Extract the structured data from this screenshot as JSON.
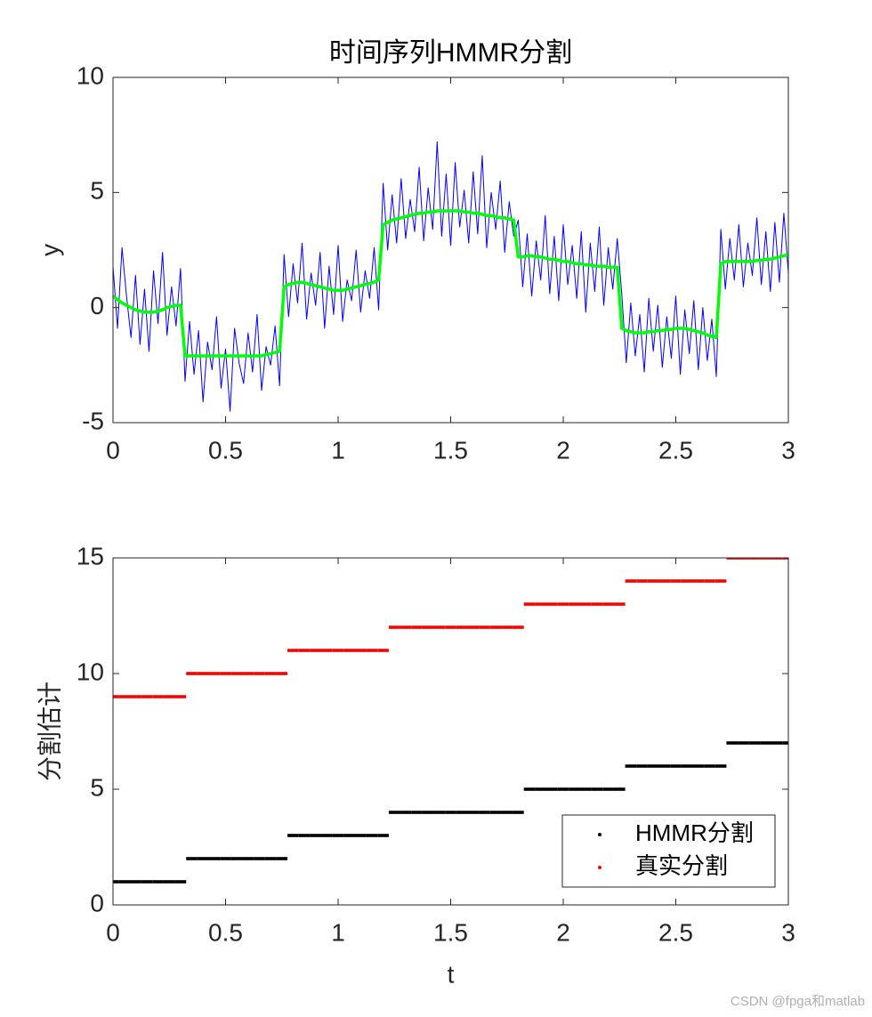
{
  "chart_data": [
    {
      "type": "line",
      "title": "时间序列HMMR分割",
      "ylabel": "y",
      "xlim": [
        0,
        3
      ],
      "ylim": [
        -5,
        10
      ],
      "xticks": [
        0,
        0.5,
        1,
        1.5,
        2,
        2.5,
        3
      ],
      "yticks": [
        -5,
        0,
        5,
        10
      ],
      "x": [
        0,
        0.02,
        0.04,
        0.06,
        0.08,
        0.1,
        0.12,
        0.14,
        0.16,
        0.18,
        0.2,
        0.22,
        0.24,
        0.26,
        0.28,
        0.3,
        0.32,
        0.34,
        0.36,
        0.38,
        0.4,
        0.42,
        0.44,
        0.46,
        0.48,
        0.5,
        0.52,
        0.54,
        0.56,
        0.58,
        0.6,
        0.62,
        0.64,
        0.66,
        0.68,
        0.7,
        0.72,
        0.74,
        0.76,
        0.78,
        0.8,
        0.82,
        0.84,
        0.86,
        0.88,
        0.9,
        0.92,
        0.94,
        0.96,
        0.98,
        1,
        1.02,
        1.04,
        1.06,
        1.08,
        1.1,
        1.12,
        1.14,
        1.16,
        1.18,
        1.2,
        1.22,
        1.24,
        1.26,
        1.28,
        1.3,
        1.32,
        1.34,
        1.36,
        1.38,
        1.4,
        1.42,
        1.44,
        1.46,
        1.48,
        1.5,
        1.52,
        1.54,
        1.56,
        1.58,
        1.6,
        1.62,
        1.64,
        1.66,
        1.68,
        1.7,
        1.72,
        1.74,
        1.76,
        1.78,
        1.8,
        1.82,
        1.84,
        1.86,
        1.88,
        1.9,
        1.92,
        1.94,
        1.96,
        1.98,
        2,
        2.02,
        2.04,
        2.06,
        2.08,
        2.1,
        2.12,
        2.14,
        2.16,
        2.18,
        2.2,
        2.22,
        2.24,
        2.26,
        2.28,
        2.3,
        2.32,
        2.34,
        2.36,
        2.38,
        2.4,
        2.42,
        2.44,
        2.46,
        2.48,
        2.5,
        2.52,
        2.54,
        2.56,
        2.58,
        2.6,
        2.62,
        2.64,
        2.66,
        2.68,
        2.7,
        2.72,
        2.74,
        2.76,
        2.78,
        2.8,
        2.82,
        2.84,
        2.86,
        2.88,
        2.9,
        2.92,
        2.94,
        2.96,
        2.98,
        3
      ],
      "series": [
        {
          "color": "#0000ff",
          "values": [
            1.8,
            -0.9,
            2.6,
            0.5,
            -1.3,
            1.4,
            -1.6,
            0.8,
            -1.9,
            1.6,
            -0.7,
            2.4,
            -1.2,
            0.9,
            -0.8,
            1.7,
            -3.2,
            -0.6,
            -2.9,
            -1.0,
            -4.1,
            -1.5,
            -2.7,
            -0.4,
            -3.5,
            -1.8,
            -4.5,
            -0.9,
            -2.4,
            -3.3,
            -1.1,
            -2.8,
            -0.3,
            -3.6,
            -1.7,
            -2.5,
            -0.8,
            -3.4,
            2.3,
            -0.4,
            1.9,
            0.2,
            2.8,
            -0.5,
            1.5,
            0.1,
            2.4,
            -0.9,
            1.8,
            -0.3,
            2.7,
            -0.6,
            1.2,
            0.3,
            2.5,
            -0.2,
            1.6,
            0.4,
            2.6,
            -0.1,
            5.4,
            2.5,
            4.9,
            2.8,
            5.6,
            3.0,
            4.7,
            3.3,
            6.1,
            2.9,
            5.2,
            3.4,
            7.2,
            3.1,
            5.8,
            2.7,
            6.3,
            3.5,
            5.1,
            2.8,
            5.9,
            3.2,
            6.6,
            2.6,
            5.0,
            3.4,
            5.5,
            2.4,
            4.6,
            3.1,
            3.8,
            0.9,
            3.2,
            0.5,
            2.9,
            1.2,
            4.0,
            0.6,
            3.1,
            0.3,
            3.6,
            1.0,
            2.7,
            0.4,
            3.3,
            -0.2,
            2.8,
            0.7,
            3.5,
            0.1,
            2.6,
            0.8,
            3.0,
            0.6,
            -2.4,
            0.2,
            -2.1,
            -0.3,
            -2.8,
            0.4,
            -1.9,
            0.1,
            -2.6,
            -0.4,
            -2.2,
            0.5,
            -2.9,
            -0.1,
            -2.0,
            0.3,
            -2.7,
            0.0,
            -2.3,
            -0.5,
            -3.0,
            3.4,
            0.8,
            3.0,
            1.2,
            3.6,
            0.9,
            2.8,
            1.4,
            3.9,
            1.0,
            3.3,
            0.7,
            3.7,
            1.1,
            4.1,
            1.5
          ]
        },
        {
          "color": "#00ff00",
          "values": [
            0.5,
            0.35,
            0.2,
            0.1,
            0.0,
            -0.1,
            -0.15,
            -0.2,
            -0.2,
            -0.2,
            -0.15,
            -0.1,
            0.0,
            0.05,
            0.1,
            0.1,
            -2.1,
            -2.1,
            -2.1,
            -2.1,
            -2.1,
            -2.1,
            -2.1,
            -2.1,
            -2.1,
            -2.1,
            -2.1,
            -2.1,
            -2.1,
            -2.1,
            -2.1,
            -2.1,
            -2.1,
            -2.1,
            -2.05,
            -2.0,
            -1.95,
            -1.9,
            0.9,
            1.0,
            1.05,
            1.1,
            1.1,
            1.05,
            1.0,
            0.95,
            0.9,
            0.85,
            0.8,
            0.75,
            0.75,
            0.75,
            0.8,
            0.85,
            0.9,
            0.95,
            1.0,
            1.05,
            1.1,
            1.2,
            3.6,
            3.7,
            3.8,
            3.85,
            3.9,
            3.95,
            4.0,
            4.05,
            4.1,
            4.1,
            4.15,
            4.15,
            4.2,
            4.2,
            4.2,
            4.2,
            4.2,
            4.2,
            4.15,
            4.15,
            4.1,
            4.1,
            4.05,
            4.0,
            4.0,
            3.95,
            3.9,
            3.9,
            3.85,
            3.8,
            2.2,
            2.2,
            2.25,
            2.25,
            2.2,
            2.2,
            2.15,
            2.1,
            2.1,
            2.05,
            2.0,
            2.0,
            1.95,
            1.9,
            1.9,
            1.85,
            1.85,
            1.8,
            1.8,
            1.8,
            1.75,
            1.75,
            1.75,
            -0.9,
            -1.0,
            -1.05,
            -1.1,
            -1.1,
            -1.1,
            -1.05,
            -1.05,
            -1.0,
            -1.0,
            -0.95,
            -0.95,
            -0.9,
            -0.9,
            -0.9,
            -0.95,
            -1.0,
            -1.05,
            -1.1,
            -1.2,
            -1.25,
            -1.3,
            1.9,
            2.0,
            2.0,
            2.0,
            2.0,
            2.0,
            2.0,
            2.0,
            2.05,
            2.05,
            2.1,
            2.1,
            2.15,
            2.2,
            2.25,
            2.3
          ]
        }
      ]
    },
    {
      "type": "scatter",
      "xlabel": "t",
      "ylabel": "分割估计",
      "xlim": [
        0,
        3
      ],
      "ylim": [
        0,
        15
      ],
      "xticks": [
        0,
        0.5,
        1,
        1.5,
        2,
        2.5,
        3
      ],
      "yticks": [
        0,
        5,
        10,
        15
      ],
      "legend": "lower right",
      "x": [
        0,
        0.05,
        0.1,
        0.15,
        0.2,
        0.25,
        0.3,
        0.35,
        0.4,
        0.45,
        0.5,
        0.55,
        0.6,
        0.65,
        0.7,
        0.75,
        0.8,
        0.85,
        0.9,
        0.95,
        1,
        1.05,
        1.1,
        1.15,
        1.2,
        1.25,
        1.3,
        1.35,
        1.4,
        1.45,
        1.5,
        1.55,
        1.6,
        1.65,
        1.7,
        1.75,
        1.8,
        1.85,
        1.9,
        1.95,
        2,
        2.05,
        2.1,
        2.15,
        2.2,
        2.25,
        2.3,
        2.35,
        2.4,
        2.45,
        2.5,
        2.55,
        2.6,
        2.65,
        2.7,
        2.75,
        2.8,
        2.85,
        2.9,
        2.95,
        3
      ],
      "series": [
        {
          "name": "HMMR分割",
          "color": "#000000",
          "values": [
            1,
            1,
            1,
            1,
            1,
            1,
            1,
            2,
            2,
            2,
            2,
            2,
            2,
            2,
            2,
            2,
            3,
            3,
            3,
            3,
            3,
            3,
            3,
            3,
            3,
            4,
            4,
            4,
            4,
            4,
            4,
            4,
            4,
            4,
            4,
            4,
            4,
            5,
            5,
            5,
            5,
            5,
            5,
            5,
            5,
            5,
            6,
            6,
            6,
            6,
            6,
            6,
            6,
            6,
            6,
            7,
            7,
            7,
            7,
            7,
            7
          ]
        },
        {
          "name": "真实分割",
          "color": "#ff0000",
          "values": [
            9,
            9,
            9,
            9,
            9,
            9,
            9,
            10,
            10,
            10,
            10,
            10,
            10,
            10,
            10,
            10,
            11,
            11,
            11,
            11,
            11,
            11,
            11,
            11,
            11,
            12,
            12,
            12,
            12,
            12,
            12,
            12,
            12,
            12,
            12,
            12,
            12,
            13,
            13,
            13,
            13,
            13,
            13,
            13,
            13,
            13,
            14,
            14,
            14,
            14,
            14,
            14,
            14,
            14,
            14,
            15,
            15,
            15,
            15,
            15,
            15
          ]
        }
      ]
    }
  ],
  "watermark": "CSDN @fpga和matlab"
}
